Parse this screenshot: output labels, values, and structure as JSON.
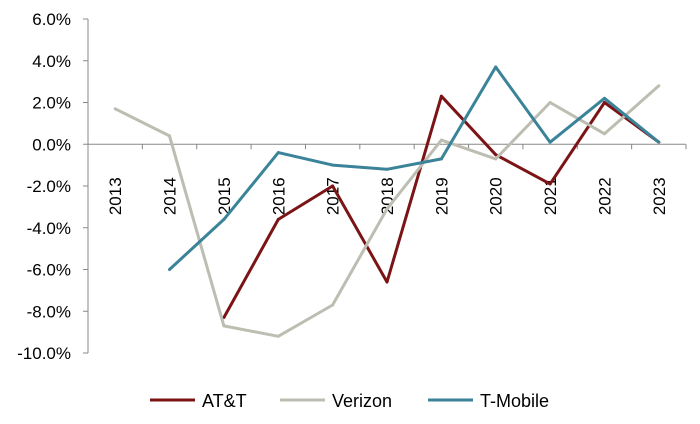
{
  "chart_data": {
    "type": "line",
    "categories": [
      "2013",
      "2014",
      "2015",
      "2016",
      "2017",
      "2018",
      "2019",
      "2020",
      "2021",
      "2022",
      "2023"
    ],
    "ylim": [
      -0.1,
      0.06
    ],
    "yticks": [
      0.06,
      0.04,
      0.02,
      0.0,
      -0.02,
      -0.04,
      -0.06,
      -0.08,
      -0.1
    ],
    "ytick_labels": [
      "6.0%",
      "4.0%",
      "2.0%",
      "0.0%",
      "-2.0%",
      "-4.0%",
      "-6.0%",
      "-8.0%",
      "-10.0%"
    ],
    "grid": false,
    "legend_position": "bottom",
    "series": [
      {
        "name": "AT&T",
        "color": "#7b1416",
        "values": [
          null,
          null,
          -0.083,
          -0.036,
          -0.02,
          -0.066,
          0.023,
          -0.005,
          -0.019,
          0.02,
          0.001
        ]
      },
      {
        "name": "Verizon",
        "color": "#bebdb2",
        "values": [
          0.017,
          0.004,
          -0.087,
          -0.092,
          -0.077,
          -0.031,
          0.002,
          -0.007,
          0.02,
          0.005,
          0.028
        ]
      },
      {
        "name": "T-Mobile",
        "color": "#3a8399",
        "values": [
          null,
          -0.06,
          -0.036,
          -0.004,
          -0.01,
          -0.012,
          -0.007,
          0.037,
          0.001,
          0.022,
          0.001
        ]
      }
    ]
  }
}
